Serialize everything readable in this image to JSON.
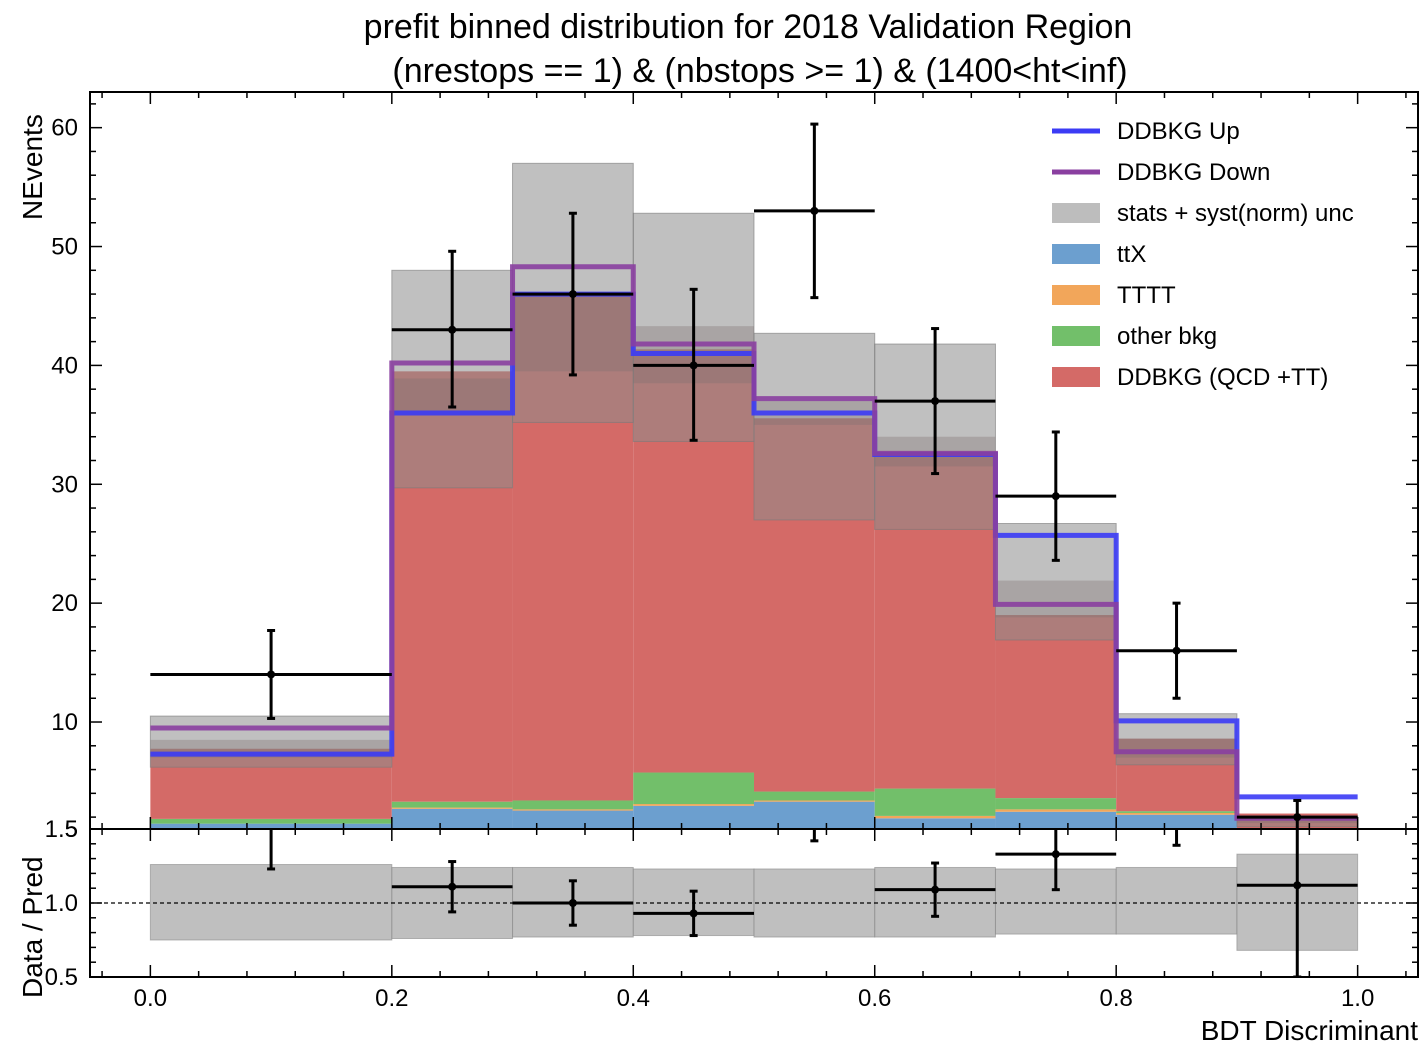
{
  "chart_data": {
    "type": "bar",
    "title_line1": "prefit binned distribution for 2018 Validation Region",
    "title_line2": "(nrestops == 1) & (nbstops >= 1) & (1400<ht<inf)",
    "xlabel": "BDT Discriminant",
    "ylabel_top": "NEvents",
    "ylabel_bottom": "Data / Pred",
    "x_ticks": [
      "0.0",
      "0.2",
      "0.4",
      "0.6",
      "0.8",
      "1.0"
    ],
    "y_ticks_top": [
      "10",
      "20",
      "30",
      "40",
      "50",
      "60"
    ],
    "y_ticks_bottom": [
      "0.5",
      "1.0",
      "1.5"
    ],
    "bottom_top_tick_overlap": "5",
    "bin_edges": [
      0.0,
      0.2,
      0.3,
      0.4,
      0.5,
      0.6,
      0.7,
      0.8,
      0.9,
      1.0
    ],
    "xlim": [
      -0.05,
      1.05
    ],
    "ylim_top": [
      1.0,
      63.0
    ],
    "ylim_bottom": [
      0.5,
      1.5
    ],
    "colors": {
      "ddbkg_up": "#3b3bf5",
      "ddbkg_down": "#8a3fa0",
      "unc": "#a9a9a9",
      "ttx": "#6c9fcf",
      "tttt": "#f2a65a",
      "other": "#72bf6a",
      "ddbkg": "#d46a67"
    },
    "legend": [
      {
        "label": "DDBKG Up",
        "kind": "line",
        "color": "#3b3bf5"
      },
      {
        "label": "DDBKG Down",
        "kind": "line",
        "color": "#8a3fa0"
      },
      {
        "label": "stats + syst(norm) unc",
        "kind": "box",
        "color": "#bdbdbd"
      },
      {
        "label": "ttX",
        "kind": "box",
        "color": "#6c9fcf"
      },
      {
        "label": "TTTT",
        "kind": "box",
        "color": "#f2a65a"
      },
      {
        "label": "other bkg",
        "kind": "box",
        "color": "#72bf6a"
      },
      {
        "label": "DDBKG (QCD +TT)",
        "kind": "box",
        "color": "#d46a67"
      }
    ],
    "series": {
      "ttX": [
        1.45,
        2.7,
        2.55,
        2.95,
        3.3,
        1.9,
        2.45,
        2.2,
        0.35
      ],
      "TTTT": [
        0.0,
        0.1,
        0.1,
        0.15,
        0.1,
        0.2,
        0.2,
        0.15,
        0.05
      ],
      "other bkg": [
        0.4,
        0.5,
        0.75,
        2.65,
        0.75,
        2.3,
        0.95,
        0.15,
        0.15
      ],
      "DDBKG (QCD +TT)": [
        5.9,
        36.2,
        42.6,
        35.6,
        31.4,
        28.3,
        15.4,
        6.1,
        1.75
      ],
      "DDBKG Up": [
        7.3,
        36.0,
        46.0,
        41.0,
        36.0,
        32.5,
        25.7,
        10.1,
        3.7
      ],
      "DDBKG Down": [
        9.5,
        40.2,
        48.3,
        41.8,
        37.2,
        32.6,
        19.9,
        7.5,
        1.9
      ],
      "unc_low": [
        6.2,
        29.7,
        35.2,
        33.6,
        27.0,
        26.2,
        16.9,
        6.4,
        1.2
      ],
      "unc_high": [
        10.5,
        48.0,
        57.0,
        52.8,
        42.7,
        41.8,
        26.7,
        10.7,
        2.1
      ],
      "unc_inner_low": [
        7.0,
        35.8,
        39.5,
        38.5,
        35.0,
        31.5,
        18.8,
        7.0,
        1.5
      ],
      "unc_inner_high": [
        8.5,
        38.9,
        46.0,
        43.3,
        37.0,
        34.0,
        21.9,
        8.6,
        1.9
      ]
    },
    "data": {
      "x": [
        0.1,
        0.25,
        0.35,
        0.45,
        0.55,
        0.65,
        0.75,
        0.85,
        0.95
      ],
      "xerr": [
        0.1,
        0.05,
        0.05,
        0.05,
        0.05,
        0.05,
        0.05,
        0.05,
        0.05
      ],
      "y": [
        14.0,
        43.0,
        46.0,
        40.0,
        53.0,
        37.0,
        29.0,
        16.0,
        2.0
      ],
      "yerr_low": [
        3.7,
        6.5,
        6.8,
        6.3,
        7.3,
        6.1,
        5.4,
        4.0,
        1.4
      ],
      "yerr_high": [
        3.7,
        6.6,
        6.8,
        6.4,
        7.3,
        6.1,
        5.4,
        4.0,
        1.4
      ]
    },
    "ratio": {
      "x": [
        0.1,
        0.25,
        0.35,
        0.45,
        0.55,
        0.65,
        0.75,
        0.85,
        0.95
      ],
      "xerr": [
        0.1,
        0.05,
        0.05,
        0.05,
        0.05,
        0.05,
        0.05,
        0.05,
        0.05
      ],
      "y": [
        1.75,
        1.11,
        1.0,
        0.93,
        1.65,
        1.09,
        1.33,
        1.85,
        1.12
      ],
      "yerr_low": [
        0.52,
        0.17,
        0.15,
        0.15,
        0.23,
        0.18,
        0.24,
        0.46,
        0.62
      ],
      "yerr_high": [
        0.52,
        0.17,
        0.15,
        0.15,
        0.23,
        0.18,
        0.24,
        0.46,
        0.62
      ],
      "unc_low": [
        0.75,
        0.76,
        0.77,
        0.78,
        0.77,
        0.77,
        0.79,
        0.79,
        0.68
      ],
      "unc_high": [
        1.26,
        1.24,
        1.24,
        1.23,
        1.23,
        1.24,
        1.23,
        1.24,
        1.33
      ],
      "reference": 1.0
    },
    "grid": false,
    "legend_position": "top-right"
  }
}
